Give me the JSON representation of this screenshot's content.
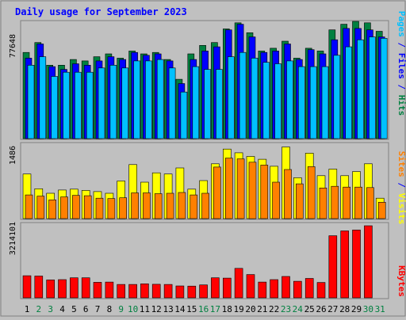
{
  "chart_data": [
    {
      "type": "bar",
      "title": "Daily usage for September 2023",
      "y_tick_label": "77648",
      "y_max": 83000,
      "legend": {
        "text": "Pages / Files / Hits",
        "colors": {
          "pages": "#00c0ff",
          "files": "#0000ff",
          "hits": "#008040",
          "separator": "#0000ff"
        }
      },
      "series": [
        {
          "name": "Hits",
          "color": "#008040",
          "values": [
            61000,
            68000,
            52000,
            52000,
            56000,
            55000,
            58000,
            60000,
            57000,
            62000,
            60000,
            61000,
            56000,
            42000,
            60000,
            66000,
            68000,
            77648,
            82000,
            75000,
            62000,
            64000,
            69000,
            57000,
            64000,
            62000,
            77000,
            81000,
            83000,
            82000,
            76000
          ]
        },
        {
          "name": "Files",
          "color": "#0000ff",
          "values": [
            57000,
            67000,
            51000,
            49000,
            53000,
            52000,
            55000,
            58000,
            56000,
            61000,
            59000,
            60000,
            55000,
            39000,
            56000,
            62000,
            65000,
            77000,
            81000,
            72000,
            61000,
            62000,
            67000,
            56000,
            63000,
            60000,
            70000,
            78000,
            78000,
            77000,
            72000
          ]
        },
        {
          "name": "Pages",
          "color": "#00c0ff",
          "values": [
            52000,
            58000,
            44000,
            47000,
            47000,
            47000,
            50000,
            52000,
            50000,
            55000,
            55000,
            56000,
            50000,
            33000,
            51000,
            49000,
            49000,
            58000,
            61000,
            57000,
            54000,
            53000,
            55000,
            51000,
            51000,
            51000,
            59000,
            65000,
            70000,
            72000,
            71000
          ]
        }
      ]
    },
    {
      "type": "bar",
      "y_tick_label": "1486",
      "y_max": 1840,
      "legend": {
        "text": "Sites / Visits",
        "colors": {
          "sites": "#ff8000",
          "visits": "#ffff00",
          "separator": "#0000ff"
        }
      },
      "series": [
        {
          "name": "Visits",
          "color": "#ffff00",
          "values": [
            1090,
            730,
            620,
            700,
            720,
            690,
            660,
            620,
            920,
            1320,
            890,
            1120,
            1090,
            1240,
            720,
            930,
            1340,
            1700,
            1610,
            1520,
            1450,
            1280,
            1750,
            1000,
            1600,
            1050,
            1210,
            1050,
            1150,
            1340,
            500
          ]
        },
        {
          "name": "Sites",
          "color": "#ff8000",
          "values": [
            580,
            550,
            460,
            530,
            570,
            560,
            500,
            490,
            510,
            630,
            630,
            610,
            620,
            640,
            580,
            620,
            1260,
            1480,
            1460,
            1380,
            1310,
            890,
            1200,
            850,
            1270,
            750,
            790,
            770,
            770,
            760,
            400
          ]
        }
      ]
    },
    {
      "type": "bar",
      "y_tick_label": "3214101",
      "y_max": 4450000,
      "legend": {
        "text": "KBytes",
        "colors": {
          "kbytes": "#ff0000"
        }
      },
      "series": [
        {
          "name": "KBytes",
          "color": "#ff0000",
          "values": [
            1320000,
            1300000,
            1070000,
            1090000,
            1200000,
            1200000,
            930000,
            940000,
            800000,
            800000,
            840000,
            810000,
            800000,
            710000,
            700000,
            770000,
            1200000,
            1180000,
            1760000,
            1390000,
            940000,
            1090000,
            1280000,
            990000,
            1160000,
            920000,
            3710000,
            4000000,
            4050000,
            4310000,
            0
          ]
        }
      ]
    }
  ],
  "x_axis": {
    "days": [
      "1",
      "2",
      "3",
      "4",
      "5",
      "6",
      "7",
      "8",
      "9",
      "10",
      "11",
      "12",
      "13",
      "14",
      "15",
      "16",
      "17",
      "18",
      "19",
      "20",
      "21",
      "22",
      "23",
      "24",
      "25",
      "26",
      "27",
      "28",
      "29",
      "30",
      "31"
    ],
    "weekend_color": "#008040",
    "weekday_color": "#000000",
    "weekend_days": [
      2,
      3,
      9,
      10,
      16,
      17,
      23,
      24,
      30,
      31
    ]
  }
}
